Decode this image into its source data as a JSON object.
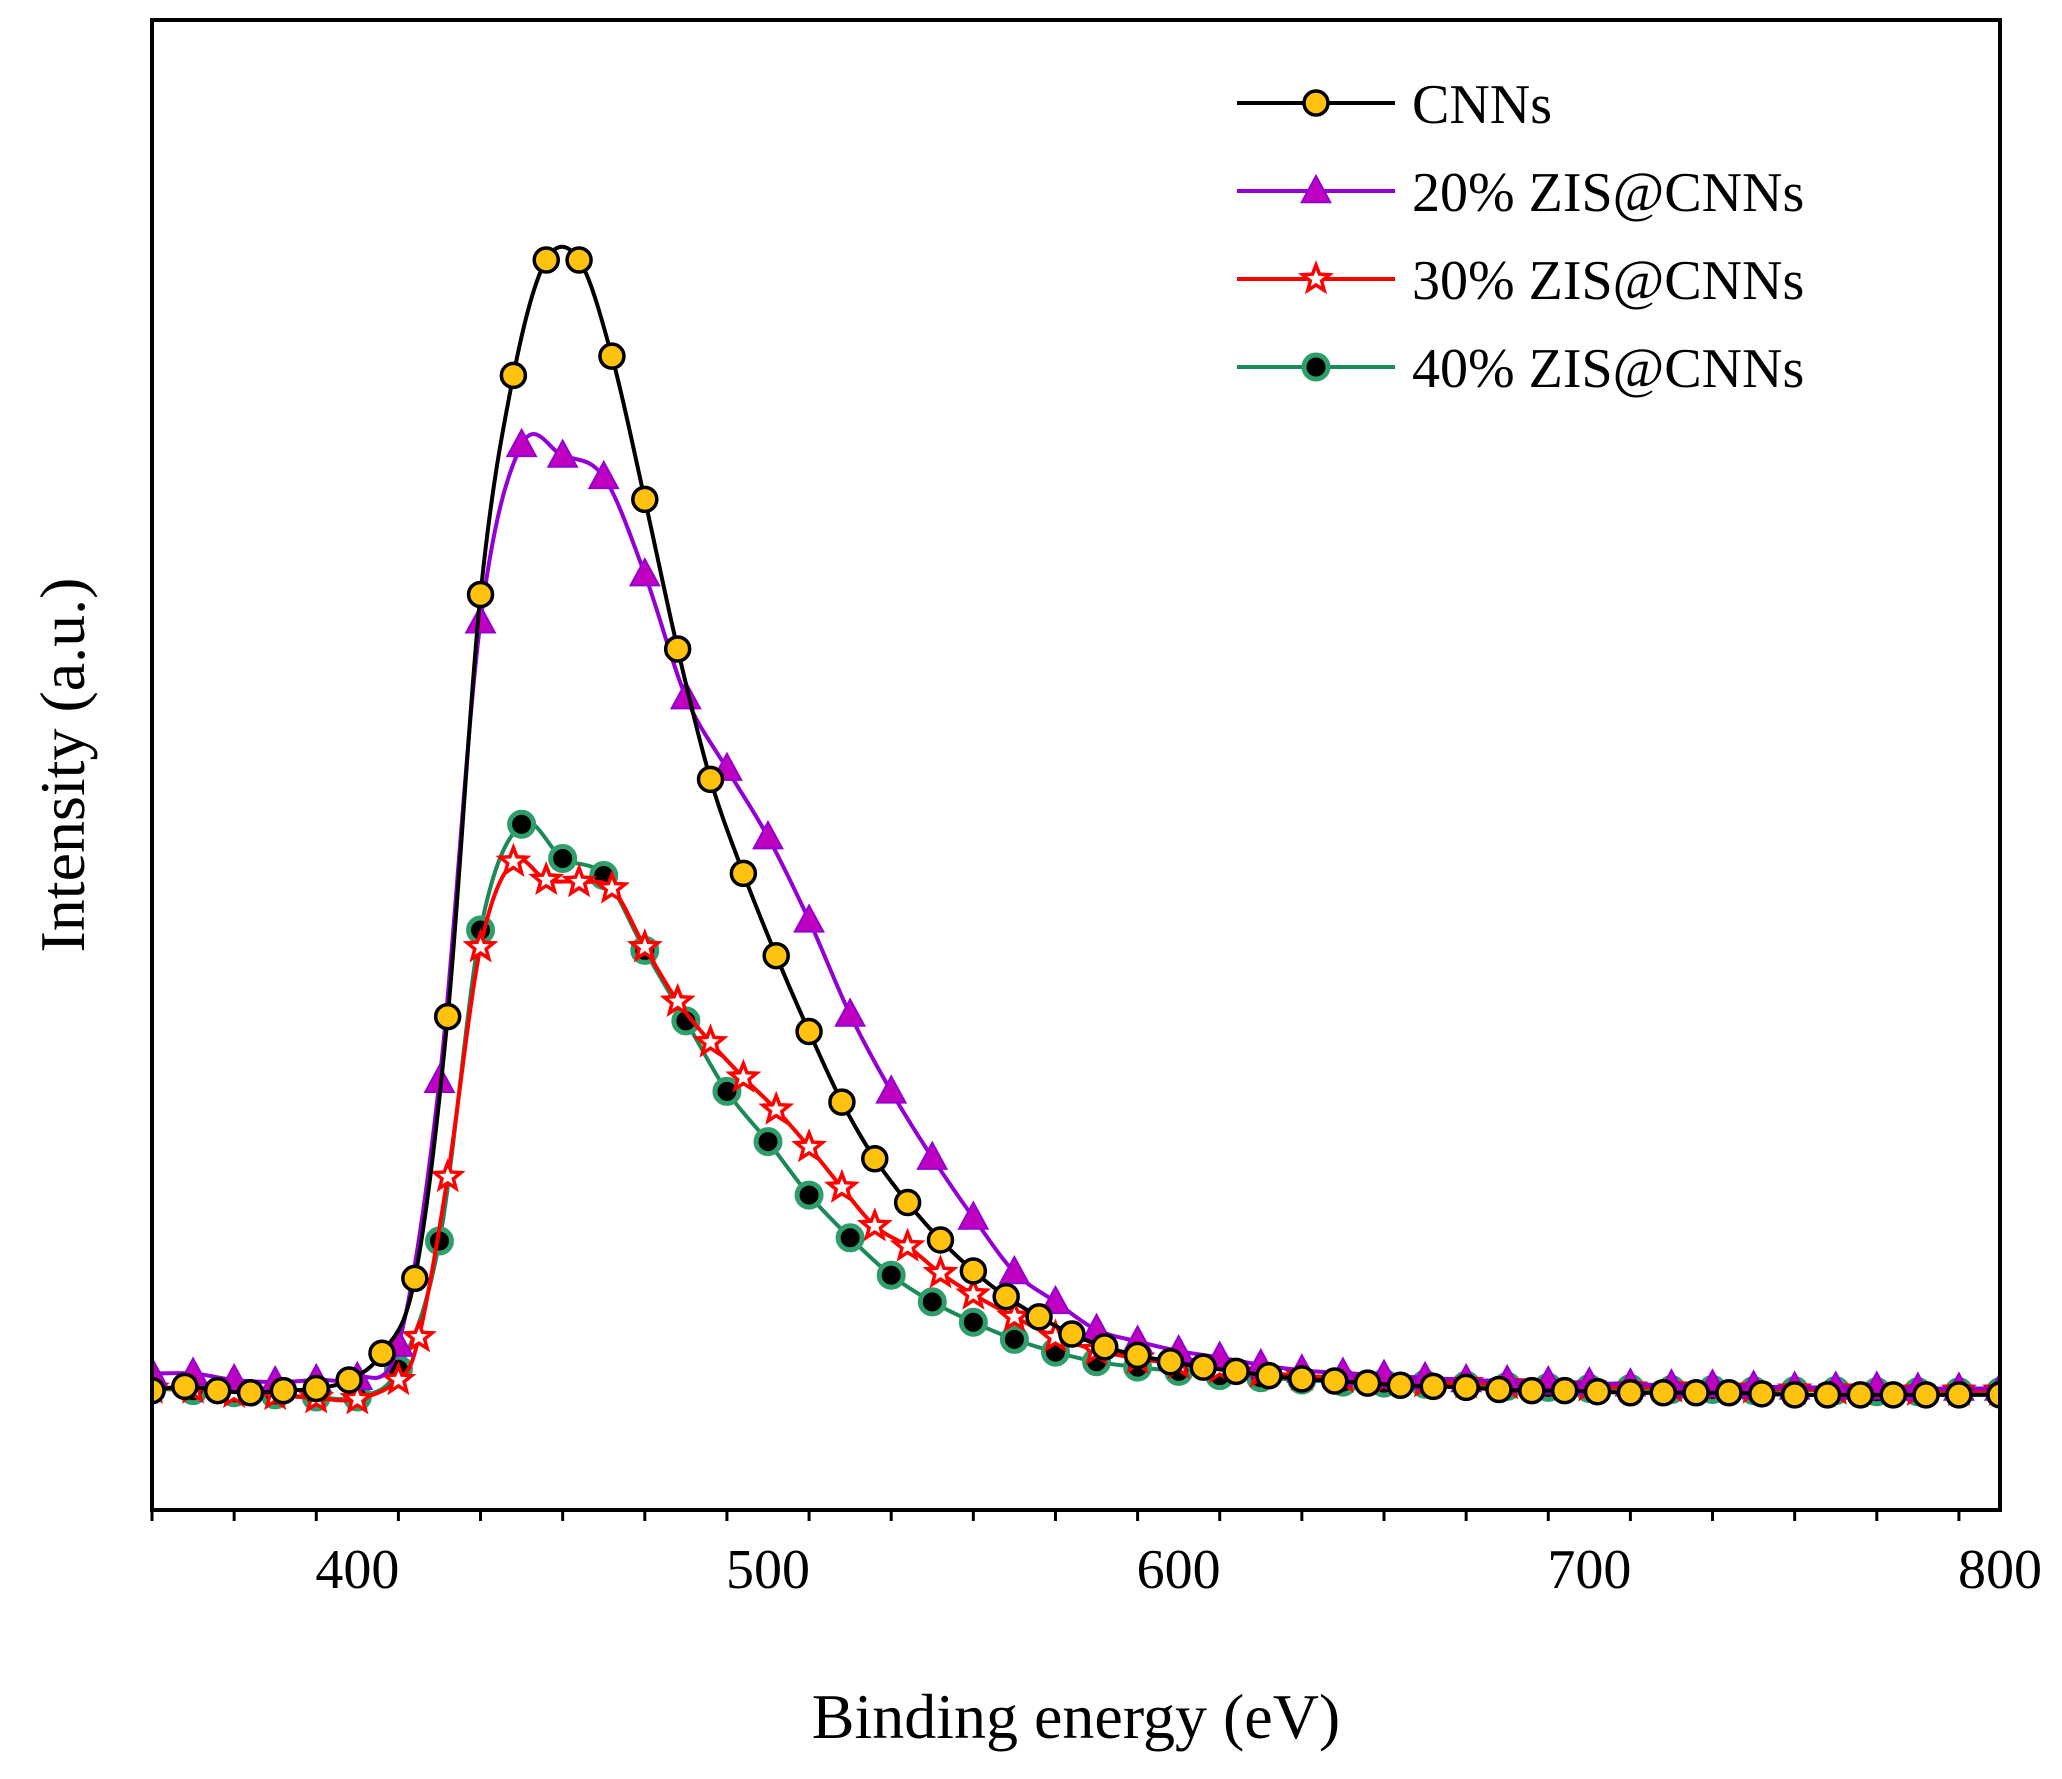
{
  "chart_data": {
    "type": "line",
    "title": "",
    "xlabel": "Binding energy (eV)",
    "ylabel": "Intensity (a.u.)",
    "xlim": [
      350,
      800
    ],
    "ylim": [
      0,
      1.1
    ],
    "x_ticks": [
      400,
      500,
      600,
      700,
      800
    ],
    "x_tick_labels": [
      "400",
      "500",
      "600",
      "700",
      "800"
    ],
    "y_ticks_shown": false,
    "grid": false,
    "legend_position": "top-right",
    "series": [
      {
        "name": "CNNs",
        "color": "#000000",
        "marker": "circle",
        "marker_fill": "#FFC20E",
        "x": [
          350,
          358,
          366,
          374,
          382,
          390,
          398,
          406,
          414,
          422,
          430,
          438,
          446,
          454,
          462,
          470,
          478,
          486,
          494,
          502,
          510,
          518,
          526,
          534,
          542,
          550,
          558,
          566,
          574,
          582,
          590,
          598,
          606,
          614,
          622,
          630,
          638,
          646,
          654,
          662,
          670,
          678,
          686,
          694,
          702,
          710,
          718,
          726,
          734,
          742,
          750,
          758,
          766,
          774,
          782,
          790,
          800
        ],
        "y": [
          0.02,
          0.024,
          0.02,
          0.018,
          0.02,
          0.022,
          0.03,
          0.055,
          0.125,
          0.37,
          0.765,
          0.97,
          1.078,
          1.078,
          0.988,
          0.854,
          0.714,
          0.592,
          0.504,
          0.427,
          0.356,
          0.29,
          0.237,
          0.196,
          0.161,
          0.132,
          0.108,
          0.089,
          0.073,
          0.061,
          0.053,
          0.047,
          0.042,
          0.038,
          0.034,
          0.031,
          0.029,
          0.027,
          0.025,
          0.024,
          0.023,
          0.021,
          0.02,
          0.02,
          0.019,
          0.018,
          0.018,
          0.018,
          0.018,
          0.017,
          0.016,
          0.016,
          0.016,
          0.016,
          0.016,
          0.016,
          0.016
        ]
      },
      {
        "name": "20% ZIS@CNNs",
        "color": "#9400D3",
        "marker": "triangle",
        "marker_fill": "#C000C0",
        "x": [
          350,
          360,
          370,
          380,
          390,
          400,
          410,
          420,
          430,
          440,
          450,
          460,
          470,
          480,
          490,
          500,
          510,
          520,
          530,
          540,
          550,
          560,
          570,
          580,
          590,
          600,
          610,
          620,
          630,
          640,
          650,
          660,
          670,
          680,
          690,
          700,
          710,
          720,
          730,
          740,
          750,
          760,
          770,
          780,
          790,
          800
        ],
        "y": [
          0.036,
          0.036,
          0.03,
          0.028,
          0.03,
          0.032,
          0.063,
          0.31,
          0.74,
          0.905,
          0.895,
          0.875,
          0.784,
          0.669,
          0.602,
          0.538,
          0.46,
          0.372,
          0.3,
          0.238,
          0.182,
          0.131,
          0.103,
          0.077,
          0.066,
          0.057,
          0.051,
          0.044,
          0.039,
          0.036,
          0.034,
          0.032,
          0.03,
          0.029,
          0.028,
          0.027,
          0.026,
          0.025,
          0.025,
          0.024,
          0.023,
          0.023,
          0.023,
          0.022,
          0.022,
          0.022
        ]
      },
      {
        "name": "30% ZIS@CNNs",
        "color": "#FF0000",
        "marker": "star",
        "marker_fill": "#FF0000",
        "x": [
          350,
          360,
          370,
          380,
          390,
          400,
          410,
          415,
          422,
          430,
          438,
          446,
          454,
          462,
          470,
          478,
          486,
          494,
          502,
          510,
          518,
          526,
          534,
          542,
          550,
          560,
          570,
          580,
          590,
          600,
          610,
          620,
          630,
          640,
          650,
          660,
          670,
          680,
          690,
          700,
          710,
          720,
          730,
          740,
          750,
          760,
          770,
          780,
          790,
          800
        ],
        "y": [
          0.022,
          0.022,
          0.018,
          0.016,
          0.013,
          0.012,
          0.03,
          0.07,
          0.22,
          0.435,
          0.515,
          0.498,
          0.496,
          0.49,
          0.435,
          0.384,
          0.346,
          0.313,
          0.283,
          0.248,
          0.21,
          0.174,
          0.155,
          0.13,
          0.11,
          0.089,
          0.07,
          0.058,
          0.05,
          0.045,
          0.041,
          0.037,
          0.034,
          0.032,
          0.03,
          0.028,
          0.027,
          0.026,
          0.025,
          0.024,
          0.023,
          0.023,
          0.022,
          0.022,
          0.021,
          0.021,
          0.021,
          0.02,
          0.02,
          0.02
        ]
      },
      {
        "name": "40% ZIS@CNNs",
        "color": "#1B8A5A",
        "marker": "circle",
        "marker_fill": "#000000",
        "marker_edge": "#2E9E6B",
        "x": [
          350,
          360,
          370,
          380,
          390,
          400,
          410,
          420,
          430,
          440,
          450,
          460,
          470,
          480,
          490,
          500,
          510,
          520,
          530,
          540,
          550,
          560,
          570,
          580,
          590,
          600,
          610,
          620,
          630,
          640,
          650,
          660,
          670,
          680,
          690,
          700,
          710,
          720,
          730,
          740,
          750,
          760,
          770,
          780,
          790,
          800
        ],
        "y": [
          0.022,
          0.02,
          0.018,
          0.016,
          0.014,
          0.014,
          0.04,
          0.16,
          0.451,
          0.55,
          0.518,
          0.502,
          0.432,
          0.366,
          0.3,
          0.253,
          0.203,
          0.163,
          0.128,
          0.103,
          0.084,
          0.068,
          0.056,
          0.047,
          0.042,
          0.038,
          0.034,
          0.032,
          0.03,
          0.028,
          0.027,
          0.026,
          0.025,
          0.024,
          0.023,
          0.022,
          0.022,
          0.021,
          0.021,
          0.02,
          0.02,
          0.02,
          0.019,
          0.019,
          0.019,
          0.019
        ]
      }
    ]
  }
}
